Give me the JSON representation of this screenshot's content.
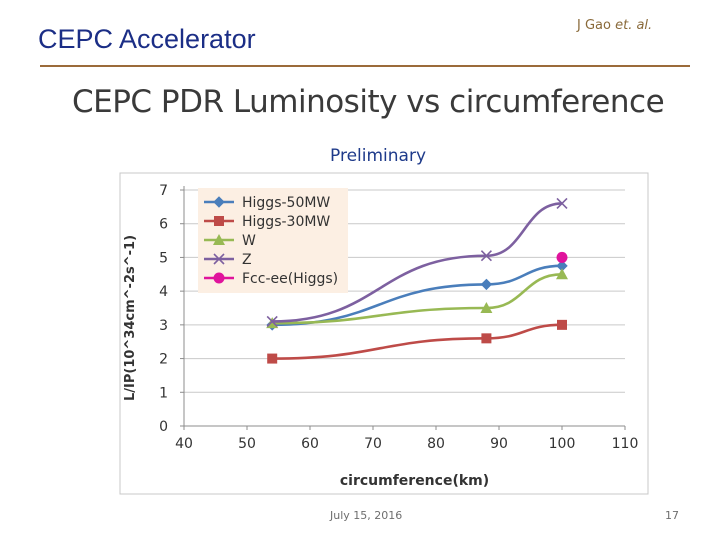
{
  "header": {
    "title": "CEPC Accelerator",
    "author_name": "J Gao",
    "author_suffix": "et. al."
  },
  "slide": {
    "title": "CEPC PDR Luminosity vs circumference",
    "badge": "Preliminary"
  },
  "footer": {
    "date": "July 15, 2016",
    "page": "17"
  },
  "chart_data": {
    "type": "line",
    "title": "",
    "xlabel": "circumference(km)",
    "ylabel": "L/IP(10^34cm^-2s^-1)",
    "xlim": [
      40,
      110
    ],
    "ylim": [
      0,
      7
    ],
    "xticks": [
      40,
      50,
      60,
      70,
      80,
      90,
      100,
      110
    ],
    "yticks": [
      0,
      1,
      2,
      3,
      4,
      5,
      6,
      7
    ],
    "grid": "horizontal",
    "legend_position": "top-left",
    "series": [
      {
        "name": "Higgs-50MW",
        "color": "#4a7ebb",
        "marker": "diamond",
        "points": [
          [
            54,
            3.0
          ],
          [
            88,
            4.2
          ],
          [
            100,
            4.75
          ]
        ]
      },
      {
        "name": "Higgs-30MW",
        "color": "#be4b48",
        "marker": "square",
        "points": [
          [
            54,
            2.0
          ],
          [
            88,
            2.6
          ],
          [
            100,
            3.0
          ]
        ]
      },
      {
        "name": "W",
        "color": "#98b954",
        "marker": "triangle",
        "points": [
          [
            54,
            3.05
          ],
          [
            88,
            3.5
          ],
          [
            100,
            4.5
          ]
        ]
      },
      {
        "name": "Z",
        "color": "#7d60a0",
        "marker": "x",
        "points": [
          [
            54,
            3.1
          ],
          [
            88,
            5.05
          ],
          [
            100,
            6.6
          ]
        ]
      },
      {
        "name": "Fcc-ee(Higgs)",
        "color": "#e0139c",
        "marker": "circle",
        "points": [
          [
            100,
            5.0
          ]
        ]
      }
    ]
  }
}
